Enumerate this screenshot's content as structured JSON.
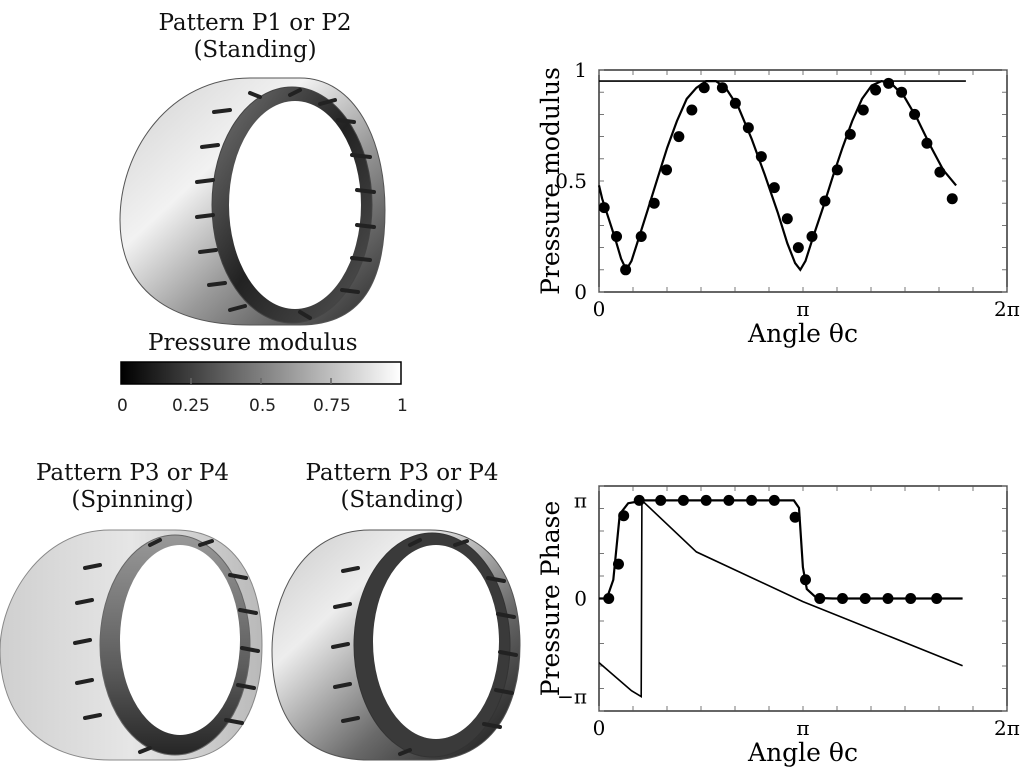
{
  "panels": {
    "top_left": {
      "line1": "Pattern P1 or P2",
      "line2": "(Standing)"
    },
    "bottom_left_a": {
      "line1": "Pattern P3 or P4",
      "line2": "(Spinning)"
    },
    "bottom_left_b": {
      "line1": "Pattern P3 or P4",
      "line2": "(Standing)"
    }
  },
  "colorbar": {
    "title": "Pressure modulus",
    "ticks": [
      "0",
      "0.25",
      "0.5",
      "0.75",
      "1"
    ],
    "colors": {
      "low": "#000000",
      "high": "#ffffff"
    }
  },
  "chart_data": [
    {
      "type": "line",
      "ylabel": "Pressure modulus",
      "xlabel": "Angle θc",
      "xlim": [
        0,
        6.2832
      ],
      "ylim": [
        0,
        1
      ],
      "xticks": [
        "0",
        "π",
        "2π"
      ],
      "yticks": [
        "0",
        "0.5",
        "1"
      ],
      "series": [
        {
          "style": "line",
          "x": [
            0,
            5.65
          ],
          "y": [
            0.95,
            0.95
          ]
        },
        {
          "style": "line",
          "points": [
            [
              0,
              0.48
            ],
            [
              0.05,
              0.42
            ],
            [
              0.15,
              0.33
            ],
            [
              0.25,
              0.24
            ],
            [
              0.34,
              0.15
            ],
            [
              0.42,
              0.1
            ],
            [
              0.5,
              0.14
            ],
            [
              0.62,
              0.25
            ],
            [
              0.75,
              0.37
            ],
            [
              0.9,
              0.51
            ],
            [
              1.05,
              0.65
            ],
            [
              1.2,
              0.77
            ],
            [
              1.35,
              0.87
            ],
            [
              1.5,
              0.92
            ],
            [
              1.65,
              0.95
            ],
            [
              1.8,
              0.95
            ],
            [
              1.95,
              0.92
            ],
            [
              2.15,
              0.83
            ],
            [
              2.35,
              0.69
            ],
            [
              2.55,
              0.53
            ],
            [
              2.75,
              0.36
            ],
            [
              2.9,
              0.22
            ],
            [
              3.02,
              0.13
            ],
            [
              3.1,
              0.1
            ],
            [
              3.18,
              0.14
            ],
            [
              3.3,
              0.25
            ],
            [
              3.45,
              0.38
            ],
            [
              3.6,
              0.52
            ],
            [
              3.75,
              0.65
            ],
            [
              3.9,
              0.77
            ],
            [
              4.05,
              0.87
            ],
            [
              4.2,
              0.93
            ],
            [
              4.35,
              0.95
            ],
            [
              4.5,
              0.94
            ],
            [
              4.7,
              0.88
            ],
            [
              4.9,
              0.78
            ],
            [
              5.1,
              0.66
            ],
            [
              5.3,
              0.55
            ],
            [
              5.5,
              0.48
            ]
          ]
        },
        {
          "style": "markers",
          "x": [
            0.08,
            0.27,
            0.41,
            0.65,
            0.85,
            1.04,
            1.23,
            1.43,
            1.62,
            1.9,
            2.1,
            2.3,
            2.5,
            2.7,
            2.9,
            3.07,
            3.28,
            3.48,
            3.67,
            3.87,
            4.07,
            4.26,
            4.46,
            4.66,
            4.86,
            5.05,
            5.25,
            5.44
          ],
          "y": [
            0.38,
            0.25,
            0.1,
            0.25,
            0.4,
            0.55,
            0.7,
            0.82,
            0.92,
            0.92,
            0.85,
            0.74,
            0.61,
            0.47,
            0.33,
            0.2,
            0.25,
            0.41,
            0.55,
            0.71,
            0.82,
            0.91,
            0.94,
            0.9,
            0.8,
            0.67,
            0.54,
            0.42
          ]
        }
      ]
    },
    {
      "type": "line",
      "ylabel": "Pressure Phase",
      "xlabel": "Angle θc",
      "xlim": [
        0,
        6.2832
      ],
      "ylim": [
        -3.6,
        3.6
      ],
      "xticks": [
        "0",
        "π",
        "2π"
      ],
      "yticks": [
        "π",
        "0",
        "−π"
      ],
      "series": [
        {
          "style": "line",
          "points": [
            [
              0,
              -2.05
            ],
            [
              0.5,
              -2.95
            ],
            [
              0.65,
              -3.14
            ],
            [
              0.66,
              3.14
            ],
            [
              1.5,
              1.49
            ],
            [
              3.14,
              -0.1
            ],
            [
              5.6,
              -2.15
            ]
          ]
        },
        {
          "style": "line",
          "points": [
            [
              0,
              0
            ],
            [
              0.12,
              0
            ],
            [
              0.22,
              0.6
            ],
            [
              0.32,
              2.7
            ],
            [
              0.45,
              3.05
            ],
            [
              0.7,
              3.14
            ],
            [
              3.0,
              3.14
            ],
            [
              3.08,
              2.9
            ],
            [
              3.14,
              1.0
            ],
            [
              3.2,
              0.3
            ],
            [
              3.35,
              0.02
            ],
            [
              3.6,
              0
            ],
            [
              5.6,
              0
            ]
          ]
        },
        {
          "style": "markers",
          "x": [
            0.15,
            0.3,
            0.38,
            0.62,
            0.95,
            1.3,
            1.65,
            2.0,
            2.35,
            2.7,
            3.02,
            3.18,
            3.4,
            3.75,
            4.1,
            4.45,
            4.8,
            5.2
          ],
          "y": [
            0,
            1.1,
            2.65,
            3.14,
            3.14,
            3.14,
            3.14,
            3.14,
            3.14,
            3.14,
            2.6,
            0.6,
            0,
            0,
            0,
            0,
            0,
            0
          ]
        }
      ]
    }
  ]
}
